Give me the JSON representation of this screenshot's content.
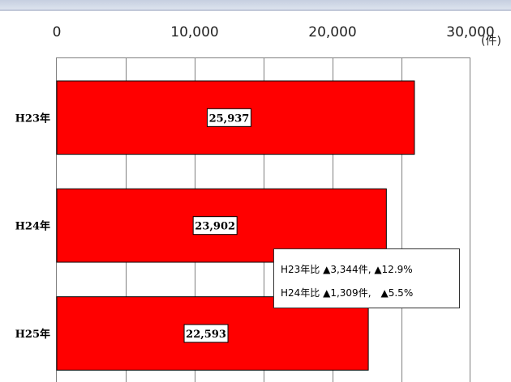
{
  "title": "",
  "unit_label": "(件)",
  "chart_data": {
    "type": "bar",
    "orientation": "horizontal",
    "categories": [
      "H23年",
      "H24年",
      "H25年"
    ],
    "values": [
      25937,
      23902,
      22593
    ],
    "value_labels": [
      "25,937",
      "23,902",
      "22,593"
    ],
    "xlim": [
      0,
      30000
    ],
    "x_ticks": [
      0,
      10000,
      20000,
      30000
    ],
    "x_tick_labels": [
      "0",
      "10,000",
      "20,000",
      "30,000"
    ],
    "bar_color": "#ff0000",
    "grid": true,
    "annotations": [
      "H23年比 ▲3,344件, ▲12.9%",
      "H24年比 ▲1,309件,　▲5.5%"
    ]
  }
}
